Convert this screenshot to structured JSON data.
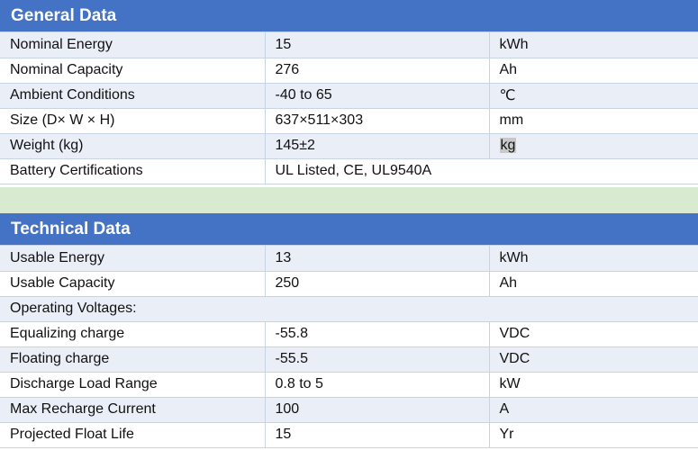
{
  "general": {
    "title": "General Data",
    "rows": [
      {
        "label": "Nominal Energy",
        "value": "15",
        "unit": "kWh"
      },
      {
        "label": "Nominal Capacity",
        "value": "276",
        "unit": "Ah"
      },
      {
        "label": "Ambient Conditions",
        "value": "-40 to 65",
        "unit": "℃"
      },
      {
        "label": "Size (D×  W  ×  H)",
        "value": "637×511×303",
        "unit": "mm"
      },
      {
        "label": "Weight (kg)",
        "value": "145±2",
        "unit": "kg"
      },
      {
        "label": "Battery Certifications",
        "value": "UL Listed, CE, UL9540A",
        "unit": ""
      }
    ]
  },
  "technical": {
    "title": "Technical Data",
    "rows": [
      {
        "label": "Usable Energy",
        "value": "13",
        "unit": "kWh"
      },
      {
        "label": "Usable Capacity",
        "value": "250",
        "unit": "Ah"
      },
      {
        "label": "Operating Voltages:",
        "value": "",
        "unit": ""
      },
      {
        "label": "Equalizing charge",
        "value": "-55.8",
        "unit": "VDC"
      },
      {
        "label": "Floating charge",
        "value": "-55.5",
        "unit": "VDC"
      },
      {
        "label": "Discharge Load Range",
        "value": "0.8 to 5",
        "unit": "kW"
      },
      {
        "label": "Max Recharge Current",
        "value": "100",
        "unit": "A"
      },
      {
        "label": "Projected Float Life",
        "value": "15",
        "unit": "Yr"
      }
    ]
  },
  "colors": {
    "header": "#4472c4",
    "band": "#e9eef7",
    "separator": "#d8ebd1"
  }
}
